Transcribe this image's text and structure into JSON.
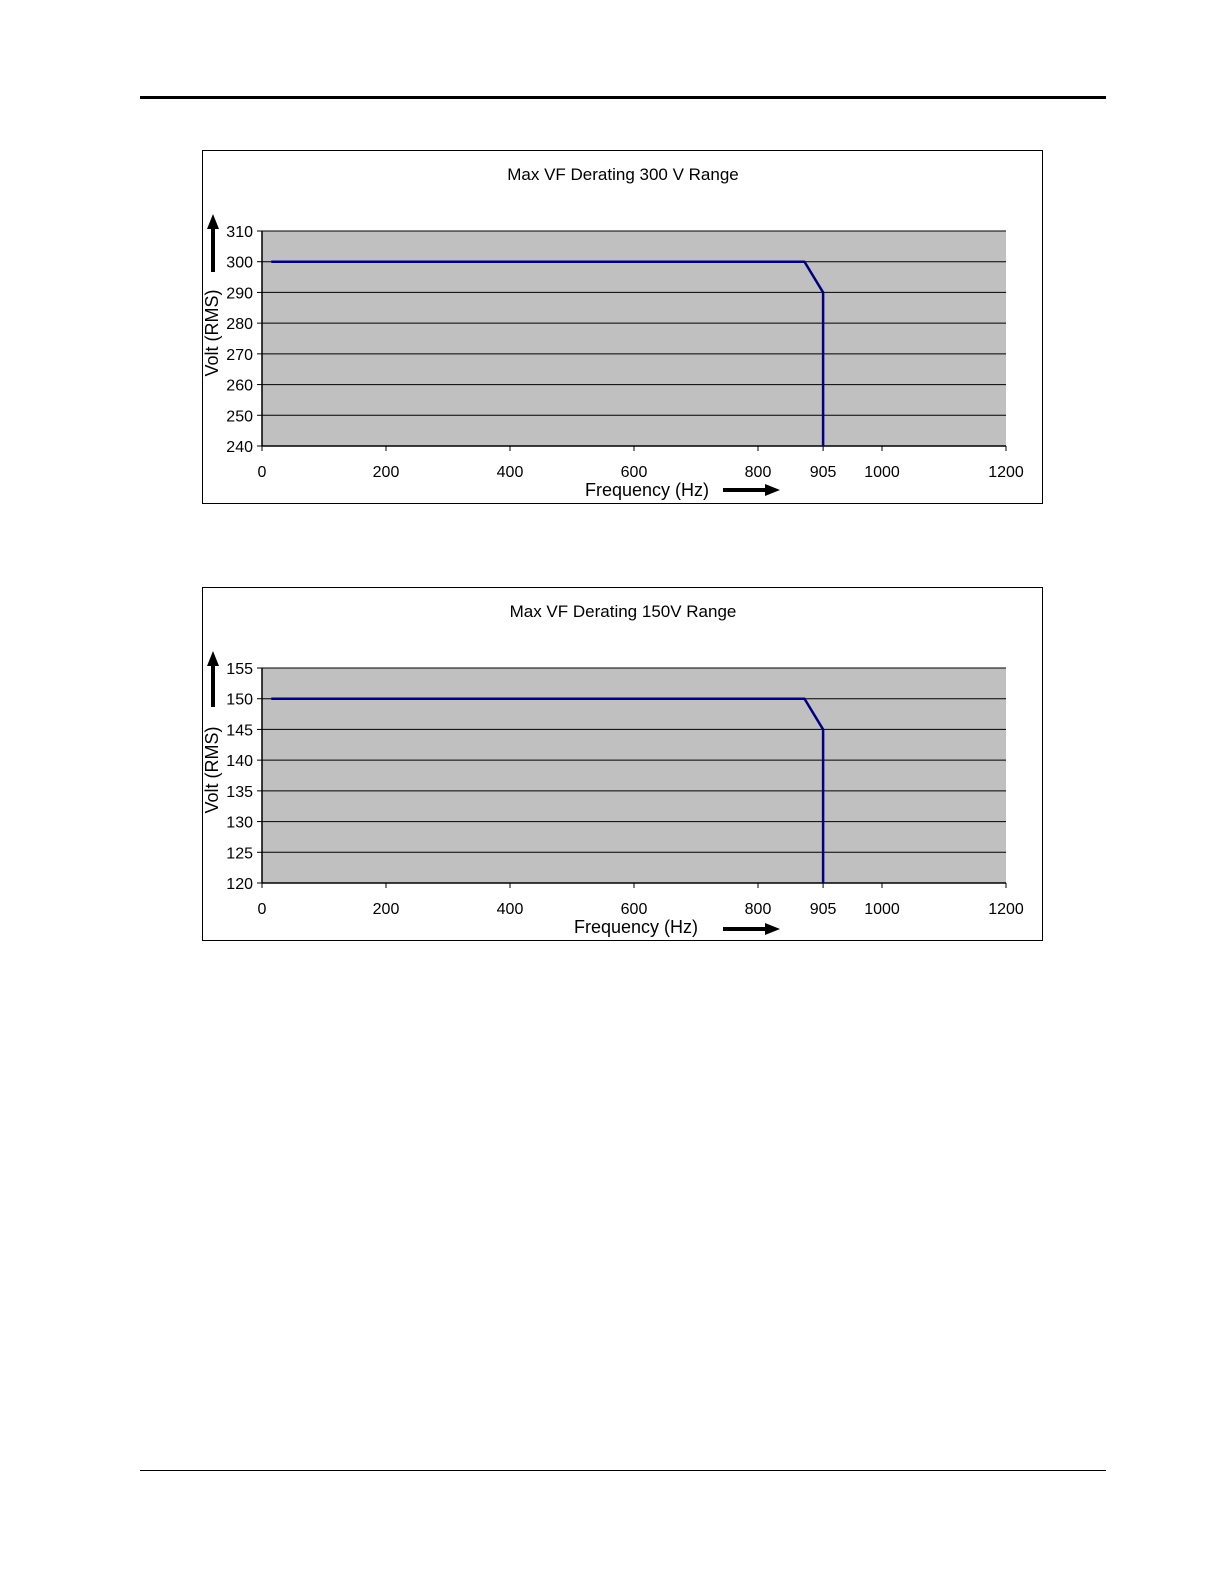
{
  "chart_data": [
    {
      "type": "line",
      "title": "Max VF Derating 300 V Range",
      "xlabel": "Frequency (Hz)",
      "ylabel": "Volt (RMS)",
      "xlim": [
        0,
        1200
      ],
      "ylim": [
        240,
        310
      ],
      "x_ticks": [
        "0",
        "200",
        "400",
        "600",
        "800",
        "905",
        "1000",
        "1200"
      ],
      "y_ticks": [
        "310",
        "300",
        "290",
        "280",
        "270",
        "260",
        "250",
        "240"
      ],
      "grid": true,
      "series": [
        {
          "x": [
            15,
            875,
            905,
            905
          ],
          "y": [
            300,
            300,
            290,
            240
          ]
        }
      ],
      "colors": {
        "plot_bg": "#c0c0c0",
        "line": "#000080",
        "grid": "#000000"
      }
    },
    {
      "type": "line",
      "title": "Max VF Derating 150V Range",
      "xlabel": "Frequency (Hz)",
      "ylabel": "Volt (RMS)",
      "xlim": [
        0,
        1200
      ],
      "ylim": [
        120,
        155
      ],
      "x_ticks": [
        "0",
        "200",
        "400",
        "600",
        "800",
        "905",
        "1000",
        "1200"
      ],
      "y_ticks": [
        "155",
        "150",
        "145",
        "140",
        "135",
        "130",
        "125",
        "120"
      ],
      "grid": true,
      "series": [
        {
          "x": [
            15,
            875,
            905,
            905
          ],
          "y": [
            150,
            150,
            145,
            120
          ]
        }
      ],
      "colors": {
        "plot_bg": "#c0c0c0",
        "line": "#000080",
        "grid": "#000000"
      }
    }
  ]
}
